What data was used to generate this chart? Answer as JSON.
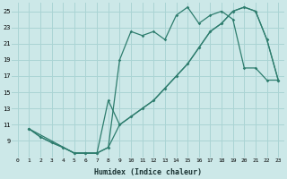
{
  "xlabel": "Humidex (Indice chaleur)",
  "bg_color": "#cce8e8",
  "grid_color": "#aad4d4",
  "line_color": "#2e7d6e",
  "xlim": [
    -0.5,
    23.5
  ],
  "ylim": [
    7,
    26
  ],
  "xticks": [
    0,
    1,
    2,
    3,
    4,
    5,
    6,
    7,
    8,
    9,
    10,
    11,
    12,
    13,
    14,
    15,
    16,
    17,
    18,
    19,
    20,
    21,
    22,
    23
  ],
  "yticks": [
    9,
    11,
    13,
    15,
    17,
    19,
    21,
    23,
    25
  ],
  "line1_x": [
    1,
    2,
    3,
    4,
    5,
    6,
    7,
    8,
    9,
    10,
    11,
    12,
    13,
    14,
    15,
    16,
    17,
    18,
    19,
    20,
    21,
    22,
    23
  ],
  "line1_y": [
    10.5,
    9.5,
    8.8,
    8.2,
    7.5,
    7.5,
    7.5,
    8.2,
    19.0,
    22.5,
    22.0,
    22.5,
    21.5,
    24.5,
    25.5,
    23.5,
    24.5,
    25.0,
    24.0,
    18.0,
    18.0,
    16.5,
    16.5
  ],
  "line2_x": [
    1,
    2,
    3,
    4,
    5,
    6,
    7,
    8,
    9,
    10,
    11,
    12,
    13,
    14,
    15,
    16,
    17,
    18,
    19,
    20,
    21,
    22,
    23
  ],
  "line2_y": [
    10.5,
    9.5,
    8.8,
    8.2,
    7.5,
    7.5,
    7.5,
    8.2,
    11.0,
    12.0,
    13.0,
    14.0,
    15.5,
    17.0,
    18.5,
    20.5,
    22.5,
    23.5,
    25.0,
    25.5,
    25.0,
    21.5,
    16.5
  ],
  "line3_x": [
    1,
    5,
    6,
    7,
    8,
    9,
    10,
    11,
    12,
    13,
    14,
    15,
    16,
    17,
    18,
    19,
    20,
    21,
    22,
    23
  ],
  "line3_y": [
    10.5,
    7.5,
    7.5,
    7.5,
    14.0,
    11.0,
    12.0,
    13.0,
    14.0,
    15.5,
    17.0,
    18.5,
    20.5,
    22.5,
    23.5,
    25.0,
    25.5,
    25.0,
    21.5,
    16.5
  ]
}
